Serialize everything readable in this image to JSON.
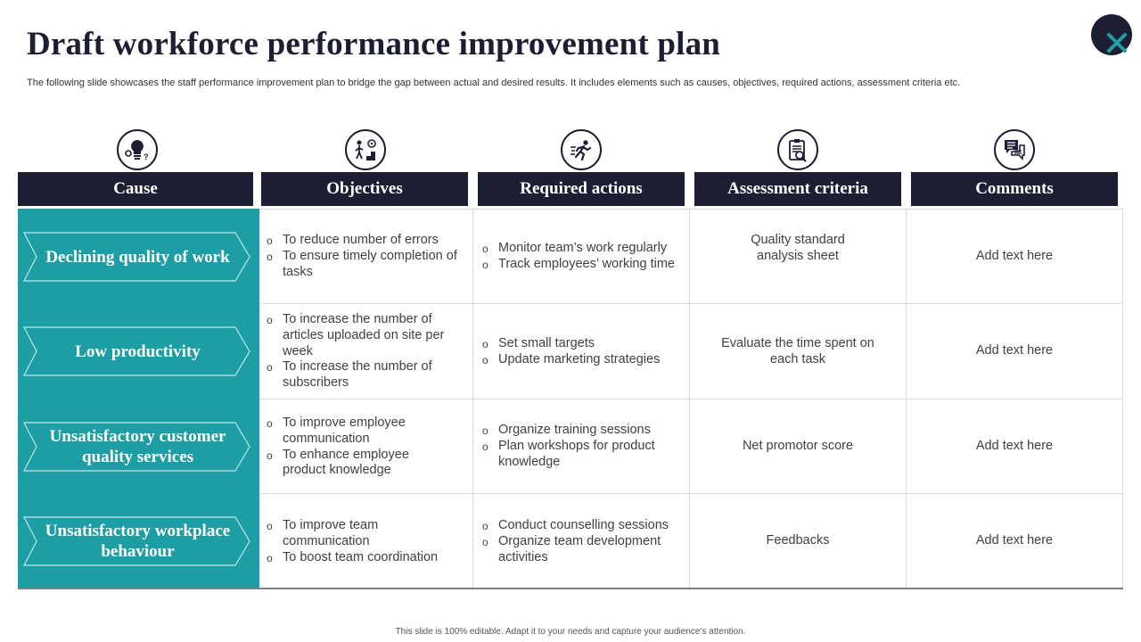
{
  "title": "Draft workforce performance improvement plan",
  "subtitle": "The following slide showcases the staff performance improvement plan to bridge the gap between actual and desired results. It includes elements such as causes, objectives, required actions, assessment criteria etc.",
  "colors": {
    "navy": "#1c1f33",
    "teal": "#1d9ea4",
    "accent": "#1d9ea4"
  },
  "columns": [
    {
      "label": "Cause",
      "icon": "lightbulb-gears-icon"
    },
    {
      "label": "Objectives",
      "icon": "stairs-target-icon"
    },
    {
      "label": "Required actions",
      "icon": "running-person-icon"
    },
    {
      "label": "Assessment criteria",
      "icon": "clipboard-magnifier-icon"
    },
    {
      "label": "Comments",
      "icon": "speech-bubbles-icon"
    }
  ],
  "rows": [
    {
      "cause": "Declining quality of work",
      "objectives": [
        "To reduce number of errors",
        "To ensure timely completion of tasks"
      ],
      "actions": [
        "Monitor team’s work regularly",
        "Track employees’ working time"
      ],
      "criteria": "Quality standard analysis sheet",
      "comments": "Add text here"
    },
    {
      "cause": "Low productivity",
      "objectives": [
        "To increase the number of articles uploaded on site per week",
        "To increase the number of subscribers"
      ],
      "actions": [
        "Set small targets",
        "Update marketing strategies"
      ],
      "criteria": "Evaluate the time spent on each task",
      "comments": "Add text here"
    },
    {
      "cause": "Unsatisfactory customer quality services",
      "objectives": [
        "To improve employee communication",
        "To enhance employee product knowledge"
      ],
      "actions": [
        "Organize training sessions",
        "Plan workshops for product knowledge"
      ],
      "criteria": "Net promotor score",
      "comments": "Add text here"
    },
    {
      "cause": "Unsatisfactory workplace behaviour",
      "objectives": [
        "To improve team communication",
        "To boost team coordination"
      ],
      "actions": [
        "Conduct counselling sessions",
        "Organize team development activities"
      ],
      "criteria": "Feedbacks",
      "comments": "Add text here"
    }
  ],
  "footer": "This slide is 100% editable. Adapt it to your needs and capture your audience’s attention."
}
